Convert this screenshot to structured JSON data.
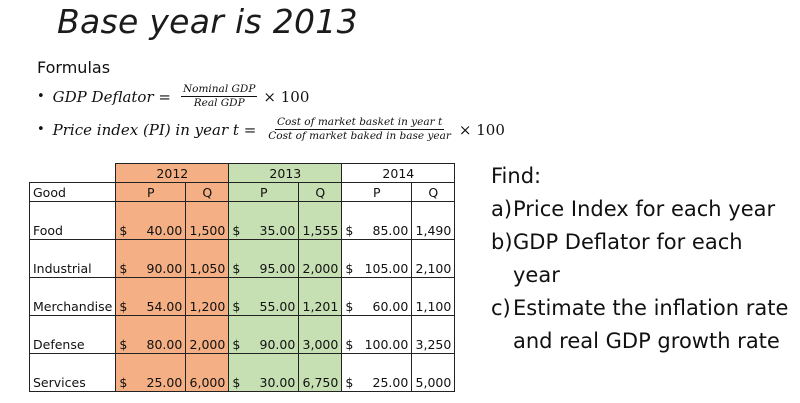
{
  "title": "Base year is 2013",
  "formulas_label": "Formulas",
  "formulas": [
    {
      "bullet": "•",
      "lhs": "GDP Deflator =",
      "numerator": "Nominal GDP",
      "denominator": "Real GDP",
      "rhs": "× 100"
    },
    {
      "bullet": "•",
      "lhs": "Price index (PI) in year t =",
      "numerator": "Cost of market basket in year t",
      "denominator": "Cost of market baked in base year",
      "rhs": "× 100"
    }
  ],
  "table": {
    "years": [
      "2012",
      "2013",
      "2014"
    ],
    "header": {
      "good": "Good",
      "p": "P",
      "q": "Q"
    },
    "currency": "$",
    "rows": [
      {
        "good": "Food",
        "p2012": "40.00",
        "q2012": "1,500",
        "p2013": "35.00",
        "q2013": "1,555",
        "p2014": "85.00",
        "q2014": "1,490"
      },
      {
        "good": "Industrial",
        "p2012": "90.00",
        "q2012": "1,050",
        "p2013": "95.00",
        "q2013": "2,000",
        "p2014": "105.00",
        "q2014": "2,100"
      },
      {
        "good": "Merchandise",
        "p2012": "54.00",
        "q2012": "1,200",
        "p2013": "55.00",
        "q2013": "1,201",
        "p2014": "60.00",
        "q2014": "1,100"
      },
      {
        "good": "Defense",
        "p2012": "80.00",
        "q2012": "2,000",
        "p2013": "90.00",
        "q2013": "3,000",
        "p2014": "100.00",
        "q2014": "3,250"
      },
      {
        "good": "Services",
        "p2012": "25.00",
        "q2012": "6,000",
        "p2013": "30.00",
        "q2013": "6,750",
        "p2014": "25.00",
        "q2014": "5,000"
      }
    ],
    "colors": {
      "year_2012": "#f4b084",
      "year_2013": "#c6e0b4"
    }
  },
  "find": {
    "heading": "Find:",
    "items": [
      {
        "mark": "a)",
        "text": "Price Index for each year"
      },
      {
        "mark": "b)",
        "text": "GDP Deflator for each year"
      },
      {
        "mark": "c)",
        "text": "Estimate the inflation rate and real GDP growth rate"
      }
    ]
  }
}
